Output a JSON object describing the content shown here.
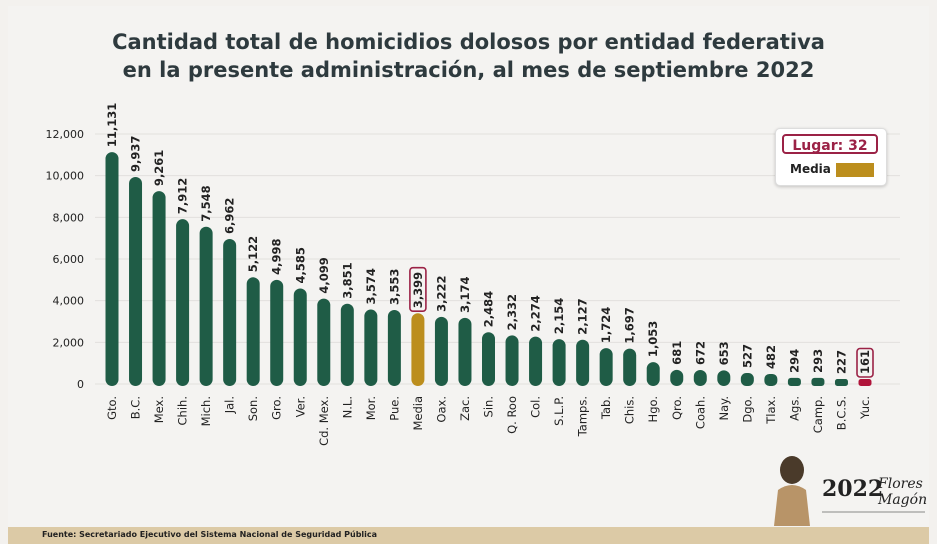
{
  "title_lines": [
    "Cantidad total de homicidios dolosos por entidad federativa",
    "en la presente administración, al mes de septiembre 2022"
  ],
  "legend": {
    "lugar": "Lugar: 32",
    "media": "Media"
  },
  "footer": "Fuente: Secretariado Ejecutivo del Sistema Nacional de Seguridad Pública",
  "logo_text": "2022 Año de Ricardo Flores Magón",
  "colors": {
    "bar": "#1f5c46",
    "media": "#bc8e1d",
    "highlight": "#b0143a",
    "box": "#9b2246"
  },
  "chart_data": {
    "type": "bar",
    "title": "Cantidad total de homicidios dolosos por entidad federativa en la presente administración, al mes de septiembre 2022",
    "xlabel": "",
    "ylabel": "",
    "ylim": [
      0,
      12000
    ],
    "yticks": [
      0,
      2000,
      4000,
      6000,
      8000,
      10000,
      12000
    ],
    "ytick_labels": [
      "0",
      "2,000",
      "4,000",
      "6,000",
      "8,000",
      "10,000",
      "12,000"
    ],
    "grid": true,
    "legend_position": "top-right",
    "categories": [
      "Gto.",
      "B.C.",
      "Mex.",
      "Chih.",
      "Mich.",
      "Jal.",
      "Son.",
      "Gro.",
      "Ver.",
      "Cd. Mex.",
      "N.L.",
      "Mor.",
      "Pue.",
      "Media",
      "Oax.",
      "Zac.",
      "Sin.",
      "Q. Roo",
      "Col.",
      "S.L.P.",
      "Tamps.",
      "Tab.",
      "Chis.",
      "Hgo.",
      "Qro.",
      "Coah.",
      "Nay.",
      "Dgo.",
      "Tlax.",
      "Ags.",
      "Camp.",
      "B.C.S.",
      "Yuc."
    ],
    "values": [
      11131,
      9937,
      9261,
      7912,
      7548,
      6962,
      5122,
      4998,
      4585,
      4099,
      3851,
      3574,
      3553,
      3399,
      3222,
      3174,
      2484,
      2332,
      2274,
      2154,
      2127,
      1724,
      1697,
      1053,
      681,
      672,
      653,
      527,
      482,
      294,
      293,
      227,
      161
    ],
    "value_labels": [
      "11,131",
      "9,937",
      "9,261",
      "7,912",
      "7,548",
      "6,962",
      "5,122",
      "4,998",
      "4,585",
      "4,099",
      "3,851",
      "3,574",
      "3,553",
      "3,399",
      "3,222",
      "3,174",
      "2,484",
      "2,332",
      "2,274",
      "2,154",
      "2,127",
      "1,724",
      "1,697",
      "1,053",
      "681",
      "672",
      "653",
      "527",
      "482",
      "294",
      "293",
      "227",
      "161"
    ],
    "highlighted": [
      "Media",
      "Yuc."
    ]
  }
}
